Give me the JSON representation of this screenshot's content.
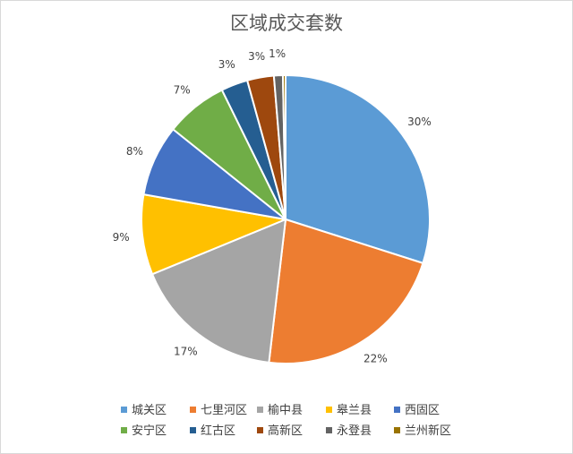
{
  "chart_data": {
    "type": "pie",
    "title": "区域成交套数",
    "categories": [
      "城关区",
      "七里河区",
      "榆中县",
      "皋兰县",
      "西固区",
      "安宁区",
      "红古区",
      "高新区",
      "永登县",
      "兰州新区"
    ],
    "values": [
      30,
      22,
      17,
      9,
      8,
      7,
      3,
      3,
      1,
      0.3
    ],
    "labels": [
      "30%",
      "22%",
      "17%",
      "9%",
      "8%",
      "7%",
      "3%",
      "3%",
      "1%",
      null
    ],
    "colors": [
      "#5B9BD5",
      "#ED7D31",
      "#A5A5A5",
      "#FFC000",
      "#4472C4",
      "#70AD47",
      "#255E91",
      "#9E480E",
      "#636363",
      "#997300"
    ],
    "legend_position": "bottom",
    "start_angle": "12 o'clock",
    "direction": "clockwise"
  }
}
